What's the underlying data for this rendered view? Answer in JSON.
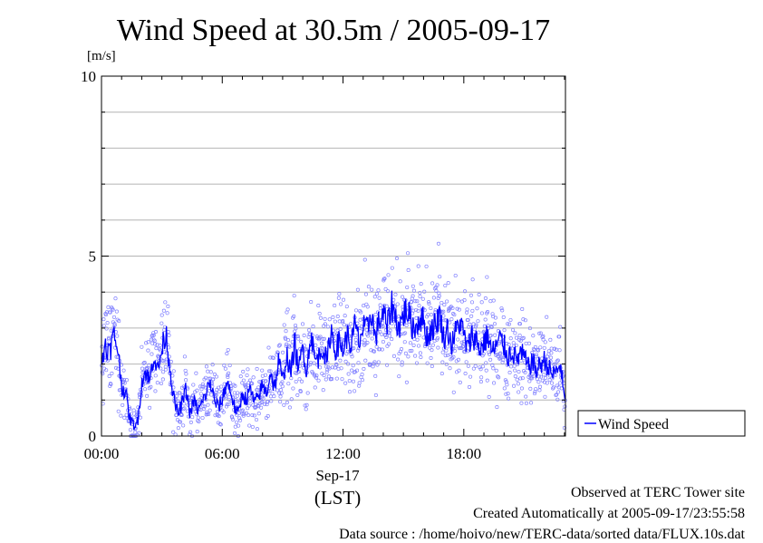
{
  "chart_data": {
    "type": "line",
    "title": "Wind Speed at 30.5m / 2005-09-17",
    "ylabel": "[m/s]",
    "xlabel": "(LST)",
    "date_label": "Sep-17",
    "ylim": [
      0,
      10
    ],
    "xlim_hours": [
      0,
      23.05
    ],
    "x_unit": "hour of day (LST)",
    "y_ticks": [
      "0",
      "5",
      "10"
    ],
    "x_ticks": [
      {
        "hour": 0,
        "label": "00:00"
      },
      {
        "hour": 6,
        "label": "06:00"
      },
      {
        "hour": 12,
        "label": "12:00"
      },
      {
        "hour": 18,
        "label": "18:00"
      }
    ],
    "grid": true,
    "legend_position": "right",
    "series": [
      {
        "name": "Wind Speed",
        "color": "#0000ff",
        "scatter_color": "#8080ff",
        "x": [
          0.0,
          0.2,
          0.4,
          0.6,
          0.8,
          1.0,
          1.2,
          1.4,
          1.6,
          1.8,
          2.0,
          2.2,
          2.4,
          2.6,
          2.8,
          3.0,
          3.2,
          3.4,
          3.6,
          3.8,
          4.0,
          4.2,
          4.4,
          4.6,
          4.8,
          5.0,
          5.2,
          5.4,
          5.6,
          5.8,
          6.0,
          6.2,
          6.4,
          6.6,
          6.8,
          7.0,
          7.2,
          7.4,
          7.6,
          7.8,
          8.0,
          8.2,
          8.4,
          8.6,
          8.8,
          9.0,
          9.2,
          9.4,
          9.6,
          9.8,
          10.0,
          10.2,
          10.4,
          10.6,
          10.8,
          11.0,
          11.2,
          11.4,
          11.6,
          11.8,
          12.0,
          12.2,
          12.4,
          12.6,
          12.8,
          13.0,
          13.2,
          13.4,
          13.6,
          13.8,
          14.0,
          14.2,
          14.4,
          14.6,
          14.8,
          15.0,
          15.2,
          15.4,
          15.6,
          15.8,
          16.0,
          16.2,
          16.4,
          16.6,
          16.8,
          17.0,
          17.2,
          17.4,
          17.6,
          17.8,
          18.0,
          18.2,
          18.4,
          18.6,
          18.8,
          19.0,
          19.2,
          19.4,
          19.6,
          19.8,
          20.0,
          20.2,
          20.4,
          20.6,
          20.8,
          21.0,
          21.2,
          21.4,
          21.6,
          21.8,
          22.0,
          22.2,
          22.4,
          22.6,
          22.8,
          23.0
        ],
        "y": [
          2.0,
          2.6,
          2.3,
          2.8,
          2.5,
          1.4,
          1.2,
          0.5,
          0.3,
          0.4,
          1.5,
          1.8,
          1.5,
          2.3,
          1.8,
          2.4,
          2.9,
          1.9,
          1.0,
          0.6,
          0.9,
          1.3,
          0.6,
          1.0,
          0.7,
          0.9,
          1.2,
          1.5,
          1.0,
          0.8,
          1.0,
          1.5,
          1.3,
          0.8,
          0.6,
          1.2,
          1.0,
          1.3,
          0.9,
          1.1,
          1.4,
          1.2,
          1.8,
          1.3,
          2.1,
          1.5,
          2.3,
          1.7,
          2.6,
          1.8,
          2.5,
          1.8,
          2.9,
          2.1,
          2.2,
          2.5,
          2.0,
          3.0,
          2.4,
          2.6,
          2.4,
          2.8,
          2.5,
          3.1,
          2.6,
          3.0,
          2.9,
          3.5,
          2.7,
          3.2,
          3.4,
          3.0,
          3.7,
          3.3,
          3.0,
          3.4,
          3.5,
          3.1,
          3.0,
          3.3,
          3.2,
          2.7,
          3.0,
          3.1,
          3.4,
          2.7,
          3.0,
          2.5,
          2.9,
          3.2,
          2.8,
          2.4,
          2.8,
          2.7,
          2.4,
          2.6,
          2.8,
          2.3,
          2.5,
          2.7,
          2.5,
          2.2,
          2.4,
          2.1,
          2.3,
          2.2,
          1.9,
          2.1,
          1.8,
          2.0,
          2.1,
          1.9,
          1.7,
          1.8,
          2.0,
          1.0
        ]
      }
    ]
  },
  "notes": {
    "observed": "Observed at TERC Tower site",
    "created": "Created Automatically at 2005-09-17/23:55:58",
    "source": "Data source : /home/hoivo/new/TERC-data/sorted  data/FLUX.10s.dat"
  }
}
